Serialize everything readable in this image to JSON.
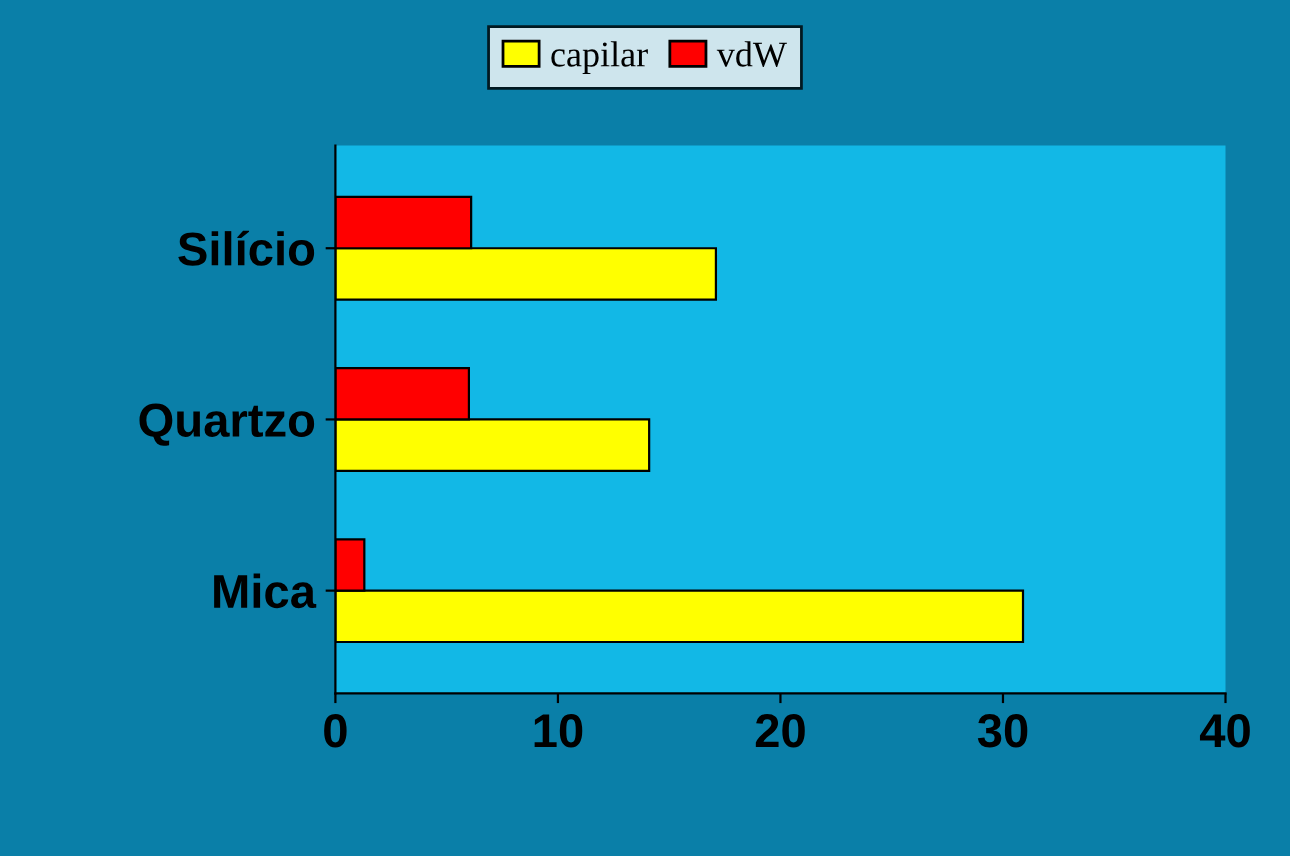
{
  "chart_data": {
    "type": "bar",
    "orientation": "horizontal",
    "categories": [
      "Silício",
      "Quartzo",
      "Mica"
    ],
    "series": [
      {
        "name": "capilar",
        "color": "#ffff00",
        "values": [
          17.1,
          14.1,
          30.9
        ]
      },
      {
        "name": "vdW",
        "color": "#ff0000",
        "values": [
          6.1,
          6,
          1.3
        ]
      }
    ],
    "xlim": [
      0,
      40
    ],
    "xticks": [
      0,
      10,
      20,
      30,
      40
    ],
    "legend": "top",
    "grid": false
  }
}
